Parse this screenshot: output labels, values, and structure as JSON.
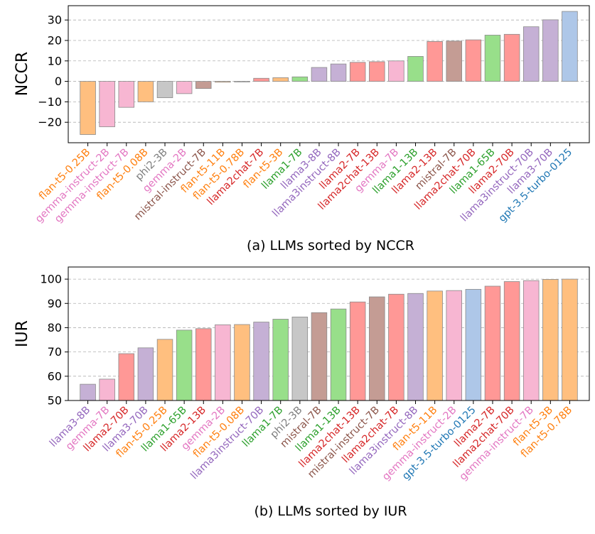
{
  "chart_data": [
    {
      "type": "bar",
      "ylabel": "NCCR",
      "caption": "(a) LLMs sorted by NCCR",
      "ylim": [
        -30,
        37
      ],
      "yticks": [
        -20,
        -10,
        0,
        10,
        20,
        30
      ],
      "ytick_labels": [
        "−20",
        "−10",
        "0",
        "10",
        "20",
        "30"
      ],
      "grid": true,
      "categories": [
        "flan-t5-0.25B",
        "gemma-instruct-2B",
        "gemma-instruct-7B",
        "flan-t5-0.08B",
        "phi2-3B",
        "gemma-2B",
        "mistral-instruct-7B",
        "flan-t5-11B",
        "flan-t5-0.78B",
        "llama2chat-7B",
        "flan-t5-3B",
        "llama1-7B",
        "llama3-8B",
        "llama3instruct-8B",
        "llama2-7B",
        "llama2chat-13B",
        "gemma-7B",
        "llama1-13B",
        "llama2-13B",
        "mistral-7B",
        "llama2chat-70B",
        "llama1-65B",
        "llama2-70B",
        "llama3instruct-70B",
        "llama3-70B",
        "gpt-3.5-turbo-0125"
      ],
      "values": [
        -26,
        -22.2,
        -12.7,
        -10,
        -8,
        -6,
        -3.5,
        -0.4,
        -0.2,
        1.5,
        1.8,
        2.2,
        6.8,
        8.5,
        9.3,
        9.6,
        10,
        12.2,
        19.5,
        19.7,
        20.3,
        22.6,
        23,
        26.7,
        30.1,
        34.2
      ],
      "families": [
        "flan",
        "gemma",
        "gemma",
        "flan",
        "phi",
        "gemma",
        "mistral",
        "flan",
        "flan",
        "llama2",
        "flan",
        "llama1",
        "llama3",
        "llama3",
        "llama2",
        "llama2",
        "gemma",
        "llama1",
        "llama2",
        "mistral",
        "llama2",
        "llama1",
        "llama2",
        "llama3",
        "llama3",
        "gpt"
      ]
    },
    {
      "type": "bar",
      "ylabel": "IUR",
      "caption": "(b) LLMs sorted by IUR",
      "ylim": [
        50,
        105
      ],
      "yticks": [
        50,
        60,
        70,
        80,
        90,
        100
      ],
      "ytick_labels": [
        "50",
        "60",
        "70",
        "80",
        "90",
        "100"
      ],
      "grid": true,
      "categories": [
        "llama3-8B",
        "gemma-7B",
        "llama2-70B",
        "llama3-70B",
        "flan-t5-0.25B",
        "llama1-65B",
        "llama2-13B",
        "gemma-2B",
        "flan-t5-0.08B",
        "llama3instruct-70B",
        "llama1-7B",
        "phi2-3B",
        "mistral-7B",
        "llama1-13B",
        "llama2chat-13B",
        "mistral-instruct-7B",
        "llama2chat-7B",
        "llama3instruct-8B",
        "flan-t5-11B",
        "gemma-instruct-2B",
        "gpt-3.5-turbo-0125",
        "llama2-7B",
        "llama2chat-70B",
        "gemma-instruct-7B",
        "flan-t5-3B",
        "flan-t5-0.78B"
      ],
      "values": [
        56.7,
        58.8,
        69.3,
        71.7,
        75.2,
        79,
        79.6,
        81.2,
        81.3,
        82.3,
        83.5,
        84.4,
        86.2,
        87.7,
        90.6,
        92.7,
        93.8,
        94.1,
        95.1,
        95.3,
        95.8,
        97.1,
        99,
        99.4,
        99.9,
        100
      ],
      "families": [
        "llama3",
        "gemma",
        "llama2",
        "llama3",
        "flan",
        "llama1",
        "llama2",
        "gemma",
        "flan",
        "llama3",
        "llama1",
        "phi",
        "mistral",
        "llama1",
        "llama2",
        "mistral",
        "llama2",
        "llama3",
        "flan",
        "gemma",
        "gpt",
        "llama2",
        "llama2",
        "gemma",
        "flan",
        "flan"
      ]
    }
  ],
  "palette": {
    "flan": {
      "fill": "#ffbf7f",
      "label": "#ff7f0e"
    },
    "gemma": {
      "fill": "#f7b6d2",
      "label": "#e377c2"
    },
    "phi": {
      "fill": "#c7c7c7",
      "label": "#7f7f7f"
    },
    "mistral": {
      "fill": "#c49c94",
      "label": "#8c564b"
    },
    "llama2": {
      "fill": "#ff9896",
      "label": "#d62728"
    },
    "llama1": {
      "fill": "#98df8a",
      "label": "#2ca02c"
    },
    "llama3": {
      "fill": "#c5b0d5",
      "label": "#9467bd"
    },
    "gpt": {
      "fill": "#aec7e8",
      "label": "#1f77b4"
    }
  }
}
